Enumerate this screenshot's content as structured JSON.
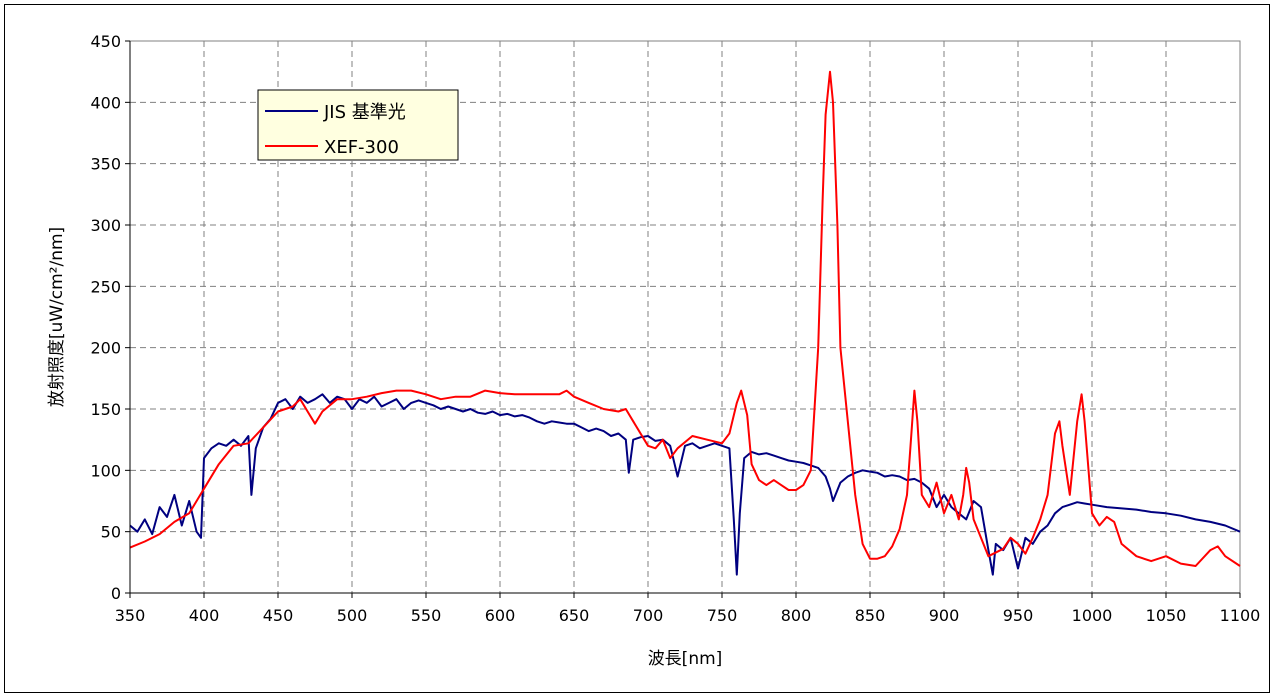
{
  "chart_data": {
    "type": "line",
    "xlabel": "波長[nm]",
    "ylabel": "放射照度[uW/cm²/nm]",
    "xlim": [
      350,
      1100
    ],
    "ylim": [
      0,
      450
    ],
    "xticks": [
      350,
      400,
      450,
      500,
      550,
      600,
      650,
      700,
      750,
      800,
      850,
      900,
      950,
      1000,
      1050,
      1100
    ],
    "yticks": [
      0,
      50,
      100,
      150,
      200,
      250,
      300,
      350,
      400,
      450
    ],
    "grid": true,
    "legend_position": "top-left",
    "series": [
      {
        "name": "JIS 基準光",
        "color": "#000080",
        "x": [
          350,
          355,
          360,
          365,
          370,
          375,
          380,
          385,
          390,
          395,
          398,
          400,
          405,
          410,
          415,
          420,
          425,
          430,
          432,
          435,
          440,
          445,
          450,
          455,
          460,
          465,
          470,
          475,
          480,
          485,
          490,
          495,
          500,
          505,
          510,
          515,
          520,
          525,
          530,
          535,
          540,
          545,
          550,
          555,
          560,
          565,
          570,
          575,
          580,
          585,
          590,
          595,
          600,
          605,
          610,
          615,
          620,
          625,
          630,
          635,
          640,
          645,
          650,
          655,
          660,
          665,
          670,
          675,
          680,
          685,
          687,
          690,
          695,
          700,
          705,
          710,
          715,
          720,
          725,
          730,
          735,
          740,
          745,
          750,
          755,
          758,
          760,
          762,
          765,
          770,
          775,
          780,
          785,
          790,
          795,
          800,
          805,
          810,
          815,
          820,
          823,
          825,
          830,
          835,
          840,
          845,
          850,
          855,
          860,
          865,
          870,
          875,
          880,
          885,
          890,
          895,
          900,
          905,
          910,
          915,
          920,
          925,
          930,
          933,
          935,
          940,
          945,
          950,
          955,
          960,
          965,
          970,
          975,
          980,
          985,
          990,
          995,
          1000,
          1010,
          1020,
          1030,
          1040,
          1050,
          1060,
          1070,
          1080,
          1090,
          1100
        ],
        "values": [
          55,
          50,
          60,
          48,
          70,
          62,
          80,
          55,
          75,
          50,
          45,
          110,
          118,
          122,
          120,
          125,
          120,
          128,
          80,
          118,
          135,
          142,
          155,
          158,
          150,
          160,
          155,
          158,
          162,
          155,
          160,
          158,
          150,
          158,
          155,
          160,
          152,
          155,
          158,
          150,
          155,
          157,
          155,
          153,
          150,
          152,
          150,
          148,
          150,
          147,
          146,
          148,
          145,
          146,
          144,
          145,
          143,
          140,
          138,
          140,
          139,
          138,
          138,
          135,
          132,
          134,
          132,
          128,
          130,
          125,
          98,
          125,
          127,
          128,
          124,
          125,
          120,
          95,
          120,
          122,
          118,
          120,
          122,
          120,
          118,
          60,
          15,
          65,
          110,
          115,
          113,
          114,
          112,
          110,
          108,
          107,
          106,
          104,
          102,
          95,
          85,
          75,
          90,
          95,
          98,
          100,
          99,
          98,
          95,
          96,
          95,
          92,
          93,
          90,
          85,
          70,
          80,
          70,
          65,
          60,
          75,
          70,
          35,
          15,
          40,
          35,
          45,
          20,
          45,
          40,
          50,
          55,
          65,
          70,
          72,
          74,
          73,
          72,
          70,
          69,
          68,
          66,
          65,
          63,
          60,
          58,
          55,
          50
        ]
      },
      {
        "name": "XEF-300",
        "color": "#ff0000",
        "x": [
          350,
          360,
          370,
          380,
          390,
          395,
          400,
          410,
          420,
          430,
          440,
          450,
          460,
          465,
          470,
          475,
          480,
          490,
          500,
          510,
          520,
          530,
          540,
          550,
          560,
          570,
          580,
          590,
          600,
          610,
          620,
          630,
          640,
          645,
          650,
          660,
          670,
          680,
          685,
          690,
          700,
          705,
          710,
          715,
          720,
          730,
          740,
          750,
          755,
          760,
          763,
          767,
          770,
          775,
          780,
          785,
          790,
          795,
          800,
          805,
          810,
          815,
          818,
          820,
          823,
          825,
          828,
          830,
          835,
          840,
          845,
          850,
          855,
          860,
          865,
          870,
          875,
          878,
          880,
          882,
          885,
          890,
          895,
          900,
          905,
          910,
          913,
          915,
          917,
          920,
          930,
          940,
          945,
          950,
          955,
          960,
          965,
          970,
          975,
          978,
          980,
          985,
          990,
          993,
          995,
          1000,
          1005,
          1010,
          1015,
          1020,
          1030,
          1040,
          1050,
          1060,
          1070,
          1080,
          1085,
          1090,
          1100
        ],
        "values": [
          37,
          42,
          48,
          58,
          65,
          75,
          85,
          105,
          120,
          122,
          135,
          148,
          152,
          158,
          148,
          138,
          148,
          158,
          158,
          160,
          163,
          165,
          165,
          162,
          158,
          160,
          160,
          165,
          163,
          162,
          162,
          162,
          162,
          165,
          160,
          155,
          150,
          148,
          150,
          140,
          120,
          118,
          125,
          110,
          118,
          128,
          125,
          122,
          130,
          155,
          165,
          145,
          105,
          92,
          88,
          92,
          88,
          84,
          84,
          88,
          100,
          200,
          320,
          390,
          425,
          400,
          300,
          200,
          140,
          80,
          40,
          28,
          28,
          30,
          38,
          52,
          80,
          130,
          165,
          140,
          80,
          70,
          90,
          65,
          80,
          60,
          80,
          102,
          90,
          60,
          30,
          36,
          45,
          40,
          32,
          45,
          60,
          80,
          130,
          140,
          120,
          80,
          140,
          162,
          140,
          65,
          55,
          62,
          58,
          40,
          30,
          26,
          30,
          24,
          22,
          35,
          38,
          30,
          22
        ]
      }
    ]
  }
}
